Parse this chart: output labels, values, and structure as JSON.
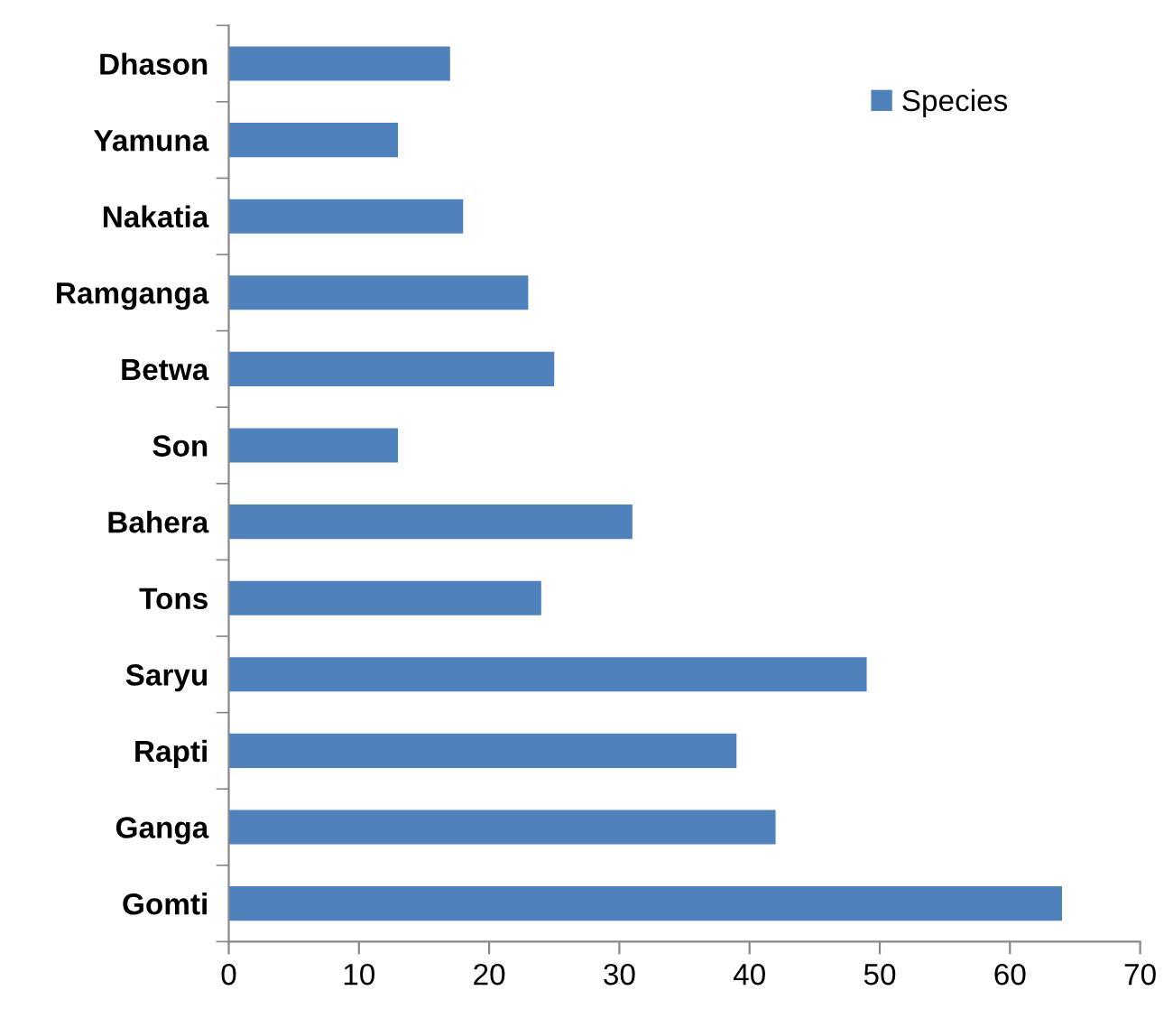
{
  "chart_data": {
    "type": "bar",
    "orientation": "horizontal",
    "categories": [
      "Dhason",
      "Yamuna",
      "Nakatia",
      "Ramganga",
      "Betwa",
      "Son",
      "Bahera",
      "Tons",
      "Saryu",
      "Rapti",
      "Ganga",
      "Gomti"
    ],
    "series": [
      {
        "name": "Species",
        "color": "#4f81bd",
        "values": [
          17,
          13,
          18,
          23,
          25,
          13,
          31,
          24,
          49,
          39,
          42,
          64
        ]
      }
    ],
    "xlim": [
      0,
      70
    ],
    "xticks": [
      0,
      10,
      20,
      30,
      40,
      50,
      60,
      70
    ],
    "grid": false,
    "legend": "top right"
  }
}
